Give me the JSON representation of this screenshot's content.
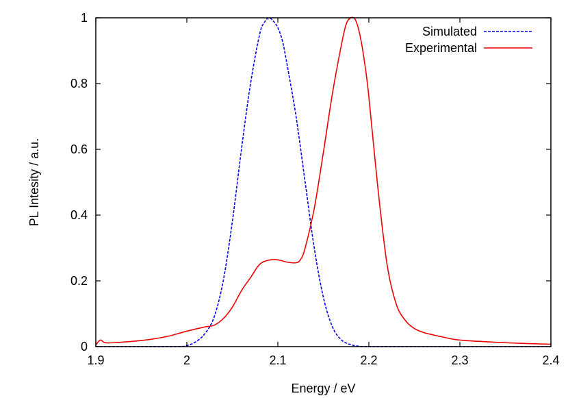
{
  "chart_data": {
    "type": "line",
    "title": "",
    "xlabel": "Energy / eV",
    "ylabel": "PL Intesity / a.u.",
    "xlim": [
      1.9,
      2.4
    ],
    "ylim": [
      0,
      1
    ],
    "xticks": [
      1.9,
      2.0,
      2.1,
      2.2,
      2.3,
      2.4
    ],
    "xtick_labels": [
      "1.9",
      "2",
      "2.1",
      "2.2",
      "2.3",
      "2.4"
    ],
    "yticks": [
      0,
      0.2,
      0.4,
      0.6,
      0.8,
      1.0
    ],
    "ytick_labels": [
      "0",
      "0.2",
      "0.4",
      "0.6",
      "0.8",
      "1"
    ],
    "grid": false,
    "legend_position": "top-right",
    "series": [
      {
        "name": "Simulated",
        "color": "#0000ee",
        "dash": "dashed",
        "x": [
          1.9,
          1.95,
          1.99,
          2.0,
          2.01,
          2.02,
          2.03,
          2.04,
          2.05,
          2.06,
          2.07,
          2.08,
          2.085,
          2.09,
          2.095,
          2.1,
          2.105,
          2.11,
          2.12,
          2.13,
          2.14,
          2.15,
          2.16,
          2.17,
          2.18,
          2.19,
          2.2,
          2.25,
          2.3,
          2.35,
          2.4
        ],
        "y": [
          0.0,
          0.0,
          0.0,
          0.003,
          0.015,
          0.04,
          0.09,
          0.2,
          0.38,
          0.6,
          0.8,
          0.95,
          0.985,
          1.0,
          0.99,
          0.97,
          0.93,
          0.86,
          0.7,
          0.5,
          0.3,
          0.15,
          0.06,
          0.02,
          0.006,
          0.001,
          0.0,
          0.0,
          0.0,
          0.0,
          0.0
        ]
      },
      {
        "name": "Experimental",
        "color": "#ee0000",
        "dash": "solid",
        "x": [
          1.9,
          1.905,
          1.91,
          1.92,
          1.94,
          1.96,
          1.98,
          2.0,
          2.02,
          2.03,
          2.04,
          2.05,
          2.06,
          2.07,
          2.08,
          2.09,
          2.1,
          2.11,
          2.12,
          2.125,
          2.13,
          2.14,
          2.15,
          2.16,
          2.17,
          2.175,
          2.18,
          2.185,
          2.19,
          2.195,
          2.2,
          2.21,
          2.22,
          2.23,
          2.24,
          2.25,
          2.26,
          2.27,
          2.28,
          2.3,
          2.35,
          2.4
        ],
        "y": [
          0.005,
          0.02,
          0.012,
          0.012,
          0.016,
          0.022,
          0.032,
          0.047,
          0.06,
          0.065,
          0.085,
          0.12,
          0.17,
          0.21,
          0.25,
          0.263,
          0.264,
          0.257,
          0.255,
          0.265,
          0.3,
          0.42,
          0.59,
          0.77,
          0.92,
          0.98,
          1.0,
          0.995,
          0.95,
          0.87,
          0.76,
          0.48,
          0.25,
          0.13,
          0.08,
          0.055,
          0.043,
          0.036,
          0.03,
          0.02,
          0.012,
          0.007
        ]
      }
    ]
  }
}
